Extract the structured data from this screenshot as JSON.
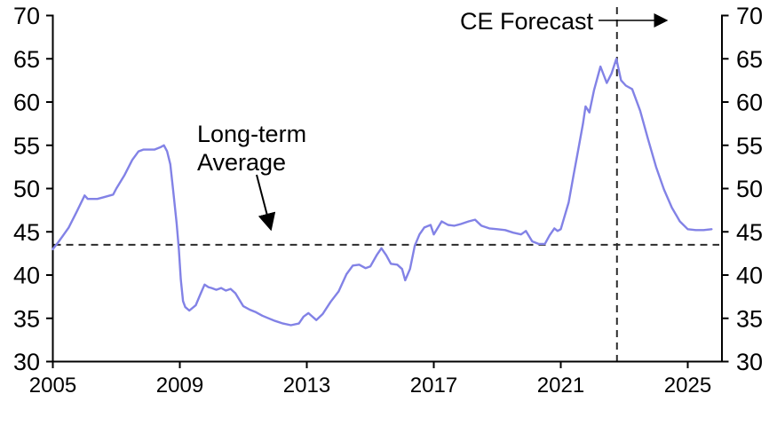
{
  "page": {
    "background": "#ffffff",
    "axis_color": "#000000",
    "text_color": "#000000"
  },
  "chart_data": {
    "type": "line",
    "title": "",
    "xlabel": "",
    "ylabel": "",
    "grid": false,
    "legend": "none",
    "xlim": [
      2005,
      2026.1
    ],
    "ylim": [
      30,
      70
    ],
    "x_ticks": [
      2005,
      2009,
      2013,
      2017,
      2021,
      2025
    ],
    "y_ticks_left": [
      70,
      65,
      60,
      55,
      50,
      45,
      40,
      35,
      30
    ],
    "y_ticks_right": [
      70,
      65,
      60,
      55,
      50,
      45,
      40,
      35,
      30
    ],
    "series": [
      {
        "name": "index-with-ce-forecast",
        "color": "#8282e6",
        "points": [
          [
            2005.0,
            43.0
          ],
          [
            2005.17,
            43.8
          ],
          [
            2005.33,
            44.6
          ],
          [
            2005.5,
            45.5
          ],
          [
            2005.75,
            47.3
          ],
          [
            2006.0,
            49.2
          ],
          [
            2006.1,
            48.8
          ],
          [
            2006.4,
            48.8
          ],
          [
            2006.6,
            49.0
          ],
          [
            2006.9,
            49.3
          ],
          [
            2007.0,
            50.0
          ],
          [
            2007.25,
            51.5
          ],
          [
            2007.5,
            53.3
          ],
          [
            2007.7,
            54.3
          ],
          [
            2007.85,
            54.5
          ],
          [
            2008.2,
            54.5
          ],
          [
            2008.4,
            54.8
          ],
          [
            2008.5,
            55.0
          ],
          [
            2008.6,
            54.3
          ],
          [
            2008.7,
            52.8
          ],
          [
            2008.8,
            49.5
          ],
          [
            2008.9,
            46.0
          ],
          [
            2008.97,
            43.0
          ],
          [
            2009.03,
            39.5
          ],
          [
            2009.1,
            37.0
          ],
          [
            2009.17,
            36.3
          ],
          [
            2009.3,
            35.9
          ],
          [
            2009.5,
            36.5
          ],
          [
            2009.65,
            37.8
          ],
          [
            2009.78,
            38.9
          ],
          [
            2009.9,
            38.6
          ],
          [
            2010.0,
            38.5
          ],
          [
            2010.15,
            38.3
          ],
          [
            2010.3,
            38.5
          ],
          [
            2010.45,
            38.2
          ],
          [
            2010.6,
            38.4
          ],
          [
            2010.75,
            37.9
          ],
          [
            2010.9,
            37.0
          ],
          [
            2011.0,
            36.4
          ],
          [
            2011.2,
            36.0
          ],
          [
            2011.4,
            35.7
          ],
          [
            2011.6,
            35.3
          ],
          [
            2011.8,
            35.0
          ],
          [
            2012.0,
            34.7
          ],
          [
            2012.25,
            34.4
          ],
          [
            2012.5,
            34.2
          ],
          [
            2012.75,
            34.4
          ],
          [
            2012.9,
            35.2
          ],
          [
            2013.05,
            35.6
          ],
          [
            2013.3,
            34.8
          ],
          [
            2013.5,
            35.5
          ],
          [
            2013.75,
            36.9
          ],
          [
            2014.0,
            38.1
          ],
          [
            2014.25,
            40.1
          ],
          [
            2014.45,
            41.1
          ],
          [
            2014.65,
            41.2
          ],
          [
            2014.85,
            40.8
          ],
          [
            2015.0,
            41.0
          ],
          [
            2015.2,
            42.3
          ],
          [
            2015.35,
            43.1
          ],
          [
            2015.5,
            42.3
          ],
          [
            2015.65,
            41.3
          ],
          [
            2015.85,
            41.2
          ],
          [
            2016.0,
            40.7
          ],
          [
            2016.1,
            39.4
          ],
          [
            2016.25,
            40.7
          ],
          [
            2016.4,
            43.4
          ],
          [
            2016.55,
            44.7
          ],
          [
            2016.7,
            45.5
          ],
          [
            2016.9,
            45.8
          ],
          [
            2017.0,
            44.7
          ],
          [
            2017.25,
            46.2
          ],
          [
            2017.45,
            45.8
          ],
          [
            2017.65,
            45.7
          ],
          [
            2017.85,
            45.9
          ],
          [
            2018.1,
            46.2
          ],
          [
            2018.3,
            46.4
          ],
          [
            2018.5,
            45.7
          ],
          [
            2018.75,
            45.4
          ],
          [
            2019.0,
            45.3
          ],
          [
            2019.25,
            45.2
          ],
          [
            2019.5,
            44.9
          ],
          [
            2019.75,
            44.7
          ],
          [
            2019.9,
            45.1
          ],
          [
            2020.1,
            43.9
          ],
          [
            2020.3,
            43.6
          ],
          [
            2020.5,
            43.6
          ],
          [
            2020.65,
            44.6
          ],
          [
            2020.8,
            45.4
          ],
          [
            2020.9,
            45.1
          ],
          [
            2021.0,
            45.3
          ],
          [
            2021.25,
            48.4
          ],
          [
            2021.4,
            51.5
          ],
          [
            2021.55,
            54.5
          ],
          [
            2021.7,
            57.5
          ],
          [
            2021.78,
            59.5
          ],
          [
            2021.9,
            58.8
          ],
          [
            2022.05,
            61.4
          ],
          [
            2022.25,
            64.1
          ],
          [
            2022.45,
            62.2
          ],
          [
            2022.6,
            63.3
          ],
          [
            2022.75,
            65.0
          ],
          [
            2022.9,
            62.5
          ],
          [
            2023.05,
            61.9
          ],
          [
            2023.25,
            61.5
          ],
          [
            2023.5,
            59.0
          ],
          [
            2023.75,
            55.7
          ],
          [
            2024.0,
            52.5
          ],
          [
            2024.25,
            49.9
          ],
          [
            2024.5,
            47.8
          ],
          [
            2024.75,
            46.2
          ],
          [
            2025.0,
            45.3
          ],
          [
            2025.25,
            45.2
          ],
          [
            2025.5,
            45.2
          ],
          [
            2025.75,
            45.3
          ]
        ]
      }
    ],
    "reference_lines": {
      "long_term_average": {
        "orientation": "horizontal",
        "value": 43.5,
        "style": "dashed",
        "color": "#2b2b2b"
      },
      "forecast_start": {
        "orientation": "vertical",
        "value": 2022.77,
        "style": "dashed",
        "color": "#2b2b2b"
      }
    },
    "annotations": {
      "ce_forecast": {
        "text": "CE Forecast",
        "arrow": "right"
      },
      "long_term_average": {
        "line1": "Long-term",
        "line2": "Average",
        "arrow": "down"
      }
    }
  }
}
